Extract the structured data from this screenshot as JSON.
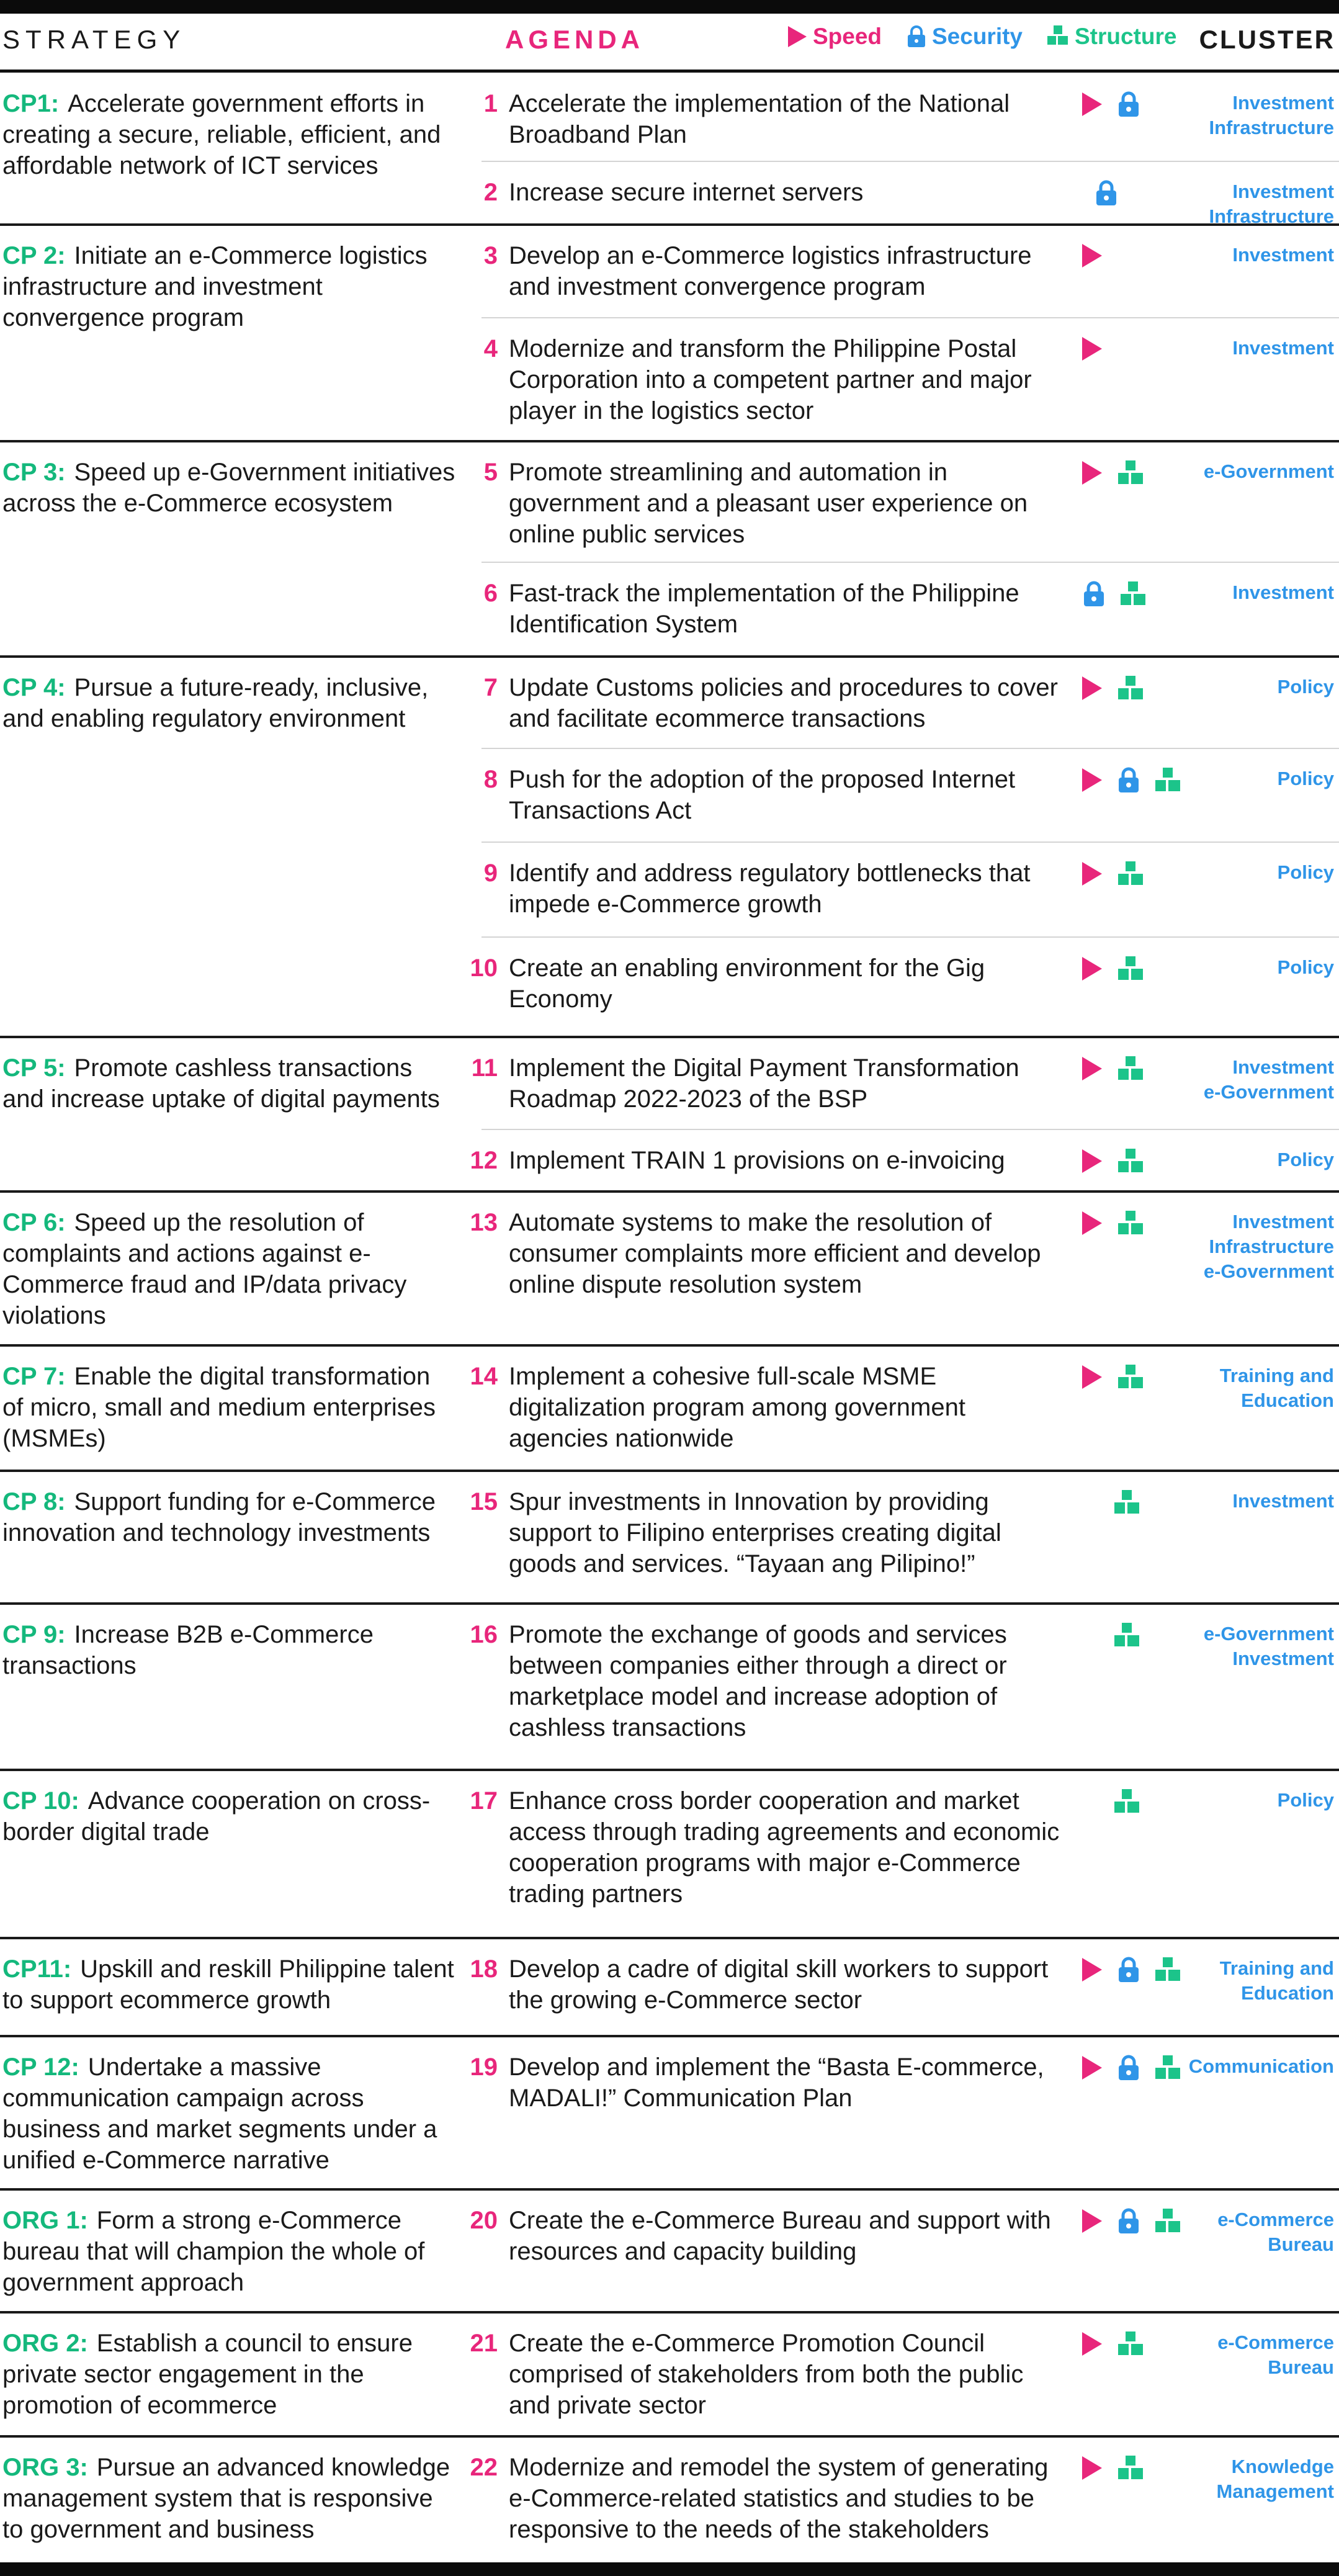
{
  "header": {
    "strategy": "STRATEGY",
    "agenda": "AGENDA",
    "cluster": "CLUSTER",
    "legend": {
      "speed": "Speed",
      "security": "Security",
      "structure": "Structure"
    }
  },
  "colors": {
    "speed": "#e8267b",
    "security": "#2f95e8",
    "structure": "#1cc48a",
    "code": "#14b87c"
  },
  "icon_names": {
    "speed": "play-triangle-icon",
    "security": "padlock-icon",
    "structure": "blocks-icon"
  },
  "groups": [
    {
      "code": "CP1:",
      "strategy": "Accelerate government efforts in creating a secure, reliable, efficient, and affordable network of ICT services",
      "rows": [
        {
          "num": "1",
          "agenda": "Accelerate the implementation of the National Broadband Plan",
          "icons": [
            "speed",
            "security"
          ],
          "cluster": [
            "Investment",
            "Infrastructure"
          ]
        },
        {
          "num": "2",
          "agenda": "Increase secure internet servers",
          "icons": [
            "security"
          ],
          "cluster": [
            "Investment",
            "Infrastructure"
          ]
        }
      ]
    },
    {
      "code": "CP 2:",
      "strategy": "Initiate an e-Commerce logistics infrastructure and investment convergence program",
      "rows": [
        {
          "num": "3",
          "agenda": "Develop an e-Commerce logistics infrastructure and investment convergence program",
          "icons": [
            "speed"
          ],
          "cluster": [
            "Investment"
          ]
        },
        {
          "num": "4",
          "agenda": "Modernize and transform the Philippine Postal Corporation into a competent partner and major player in the logistics sector",
          "icons": [
            "speed"
          ],
          "cluster": [
            "Investment"
          ]
        }
      ]
    },
    {
      "code": "CP 3:",
      "strategy": "Speed up e-Government initiatives across the e-Commerce ecosystem",
      "rows": [
        {
          "num": "5",
          "agenda": "Promote streamlining and automation in government and a pleasant user experience on online public services",
          "icons": [
            "speed",
            "structure"
          ],
          "cluster": [
            "e-Government"
          ]
        },
        {
          "num": "6",
          "agenda": "Fast-track the implementation of the Philippine Identification System",
          "icons": [
            "security",
            "structure"
          ],
          "cluster": [
            "Investment"
          ]
        }
      ]
    },
    {
      "code": "CP 4:",
      "strategy": "Pursue a future-ready, inclusive, and enabling regulatory environment",
      "rows": [
        {
          "num": "7",
          "agenda": "Update Customs policies and procedures to cover and facilitate ecommerce transactions",
          "icons": [
            "speed",
            "structure"
          ],
          "cluster": [
            "Policy"
          ]
        },
        {
          "num": "8",
          "agenda": "Push for the adoption of the proposed Internet Transactions Act",
          "icons": [
            "speed",
            "security",
            "structure"
          ],
          "cluster": [
            "Policy"
          ]
        },
        {
          "num": "9",
          "agenda": "Identify and address regulatory bottlenecks that impede e-Commerce growth",
          "icons": [
            "speed",
            "structure"
          ],
          "cluster": [
            "Policy"
          ]
        },
        {
          "num": "10",
          "agenda": "Create an enabling environment for the Gig Economy",
          "icons": [
            "speed",
            "structure"
          ],
          "cluster": [
            "Policy"
          ]
        }
      ]
    },
    {
      "code": "CP 5:",
      "strategy": "Promote cashless transactions and increase uptake of digital payments",
      "rows": [
        {
          "num": "11",
          "agenda": "Implement the Digital Payment Transformation Roadmap 2022-2023 of the BSP",
          "icons": [
            "speed",
            "structure"
          ],
          "cluster": [
            "Investment",
            "e-Government"
          ]
        },
        {
          "num": "12",
          "agenda": "Implement TRAIN 1 provisions on e-invoicing",
          "icons": [
            "speed",
            "structure"
          ],
          "cluster": [
            "Policy"
          ]
        }
      ]
    },
    {
      "code": "CP 6:",
      "strategy": "Speed up the resolution of complaints and actions against e-Commerce fraud and IP/data privacy violations",
      "rows": [
        {
          "num": "13",
          "agenda": "Automate systems to make the resolution of consumer complaints more efficient and develop online dispute resolution system",
          "icons": [
            "speed",
            "structure"
          ],
          "cluster": [
            "Investment",
            "Infrastructure",
            "e-Government"
          ]
        }
      ]
    },
    {
      "code": "CP 7:",
      "strategy": "Enable the digital transformation of micro, small and medium enterprises (MSMEs)",
      "rows": [
        {
          "num": "14",
          "agenda": "Implement a cohesive full-scale MSME digitalization program  among government agencies nationwide",
          "icons": [
            "speed",
            "structure"
          ],
          "cluster": [
            "Training and",
            "Education"
          ]
        }
      ]
    },
    {
      "code": "CP 8:",
      "strategy": "Support funding for e-Commerce innovation and technology investments",
      "rows": [
        {
          "num": "15",
          "agenda": "Spur investments in Innovation by providing support to Filipino enterprises creating digital goods and services. “Tayaan ang Pilipino!”",
          "icons": [
            "structure"
          ],
          "cluster": [
            "Investment"
          ]
        }
      ]
    },
    {
      "code": "CP 9:",
      "strategy": "Increase B2B e-Commerce transactions",
      "rows": [
        {
          "num": "16",
          "agenda": "Promote the exchange of goods and services between companies either through a direct or marketplace model and increase adoption of cashless transactions",
          "icons": [
            "structure"
          ],
          "cluster": [
            "e-Government",
            "Investment"
          ]
        }
      ]
    },
    {
      "code": "CP 10:",
      "strategy": "Advance cooperation on cross-border digital trade",
      "rows": [
        {
          "num": "17",
          "agenda": "Enhance cross border cooperation and market access through trading agreements and economic cooperation programs with major e-Commerce trading partners",
          "icons": [
            "structure"
          ],
          "cluster": [
            "Policy"
          ]
        }
      ]
    },
    {
      "code": "CP11:",
      "strategy": "Upskill and reskill Philippine talent to support ecommerce growth",
      "rows": [
        {
          "num": "18",
          "agenda": "Develop a cadre of digital skill workers to support the growing e-Commerce sector",
          "icons": [
            "speed",
            "security",
            "structure"
          ],
          "cluster": [
            "Training and",
            "Education"
          ]
        }
      ]
    },
    {
      "code": "CP 12:",
      "strategy": "Undertake a massive communication campaign across business and market segments under a unified e-Commerce narrative",
      "rows": [
        {
          "num": "19",
          "agenda": "Develop and implement the “Basta E-commerce, MADALI!” Communication Plan",
          "icons": [
            "speed",
            "security",
            "structure"
          ],
          "cluster": [
            "Communication"
          ]
        }
      ]
    },
    {
      "code": "ORG 1:",
      "strategy": "Form a strong e-Commerce bureau that will champion the whole of government approach",
      "rows": [
        {
          "num": "20",
          "agenda": "Create the e-Commerce Bureau and support with resources and capacity building",
          "icons": [
            "speed",
            "security",
            "structure"
          ],
          "cluster": [
            "e-Commerce",
            "Bureau"
          ]
        }
      ]
    },
    {
      "code": "ORG 2:",
      "strategy": "Establish a council to ensure private sector engagement  in the promotion of ecommerce",
      "rows": [
        {
          "num": "21",
          "agenda": "Create the e-Commerce Promotion Council comprised of stakeholders from both the public and private sector",
          "icons": [
            "speed",
            "structure"
          ],
          "cluster": [
            "e-Commerce",
            "Bureau"
          ]
        }
      ]
    },
    {
      "code": "ORG 3:",
      "strategy": "Pursue an advanced knowledge management system that is responsive to government and business",
      "rows": [
        {
          "num": "22",
          "agenda": "Modernize and remodel the system of generating e-Commerce-related statistics and studies to be responsive to the needs of the stakeholders",
          "icons": [
            "speed",
            "structure"
          ],
          "cluster": [
            "Knowledge",
            "Management"
          ]
        }
      ]
    }
  ]
}
